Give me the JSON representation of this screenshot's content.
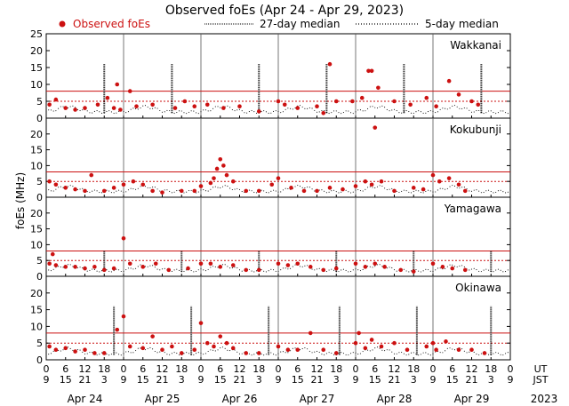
{
  "chart_data": {
    "type": "scatter",
    "title": "Observed foEs (Apr 24 - Apr 29, 2023)",
    "ylabel": "foEs (MHz)",
    "legend": {
      "placement": "top",
      "entries": [
        "Observed foEs",
        "27-day median",
        "5-day median"
      ]
    },
    "colors": {
      "observed": "#cc1111",
      "median27": "#000000",
      "median5": "#000000",
      "ref_line": "#cc1111"
    },
    "x_units": "hours since Apr 24 09 JST",
    "xlim": [
      0,
      144
    ],
    "ut_ticks": [
      "0",
      "6",
      "12",
      "18",
      "0",
      "6",
      "12",
      "18",
      "0",
      "6",
      "12",
      "18",
      "0",
      "6",
      "12",
      "18",
      "0",
      "6",
      "12",
      "18",
      "0",
      "6",
      "12",
      "18",
      "0"
    ],
    "jst_ticks": [
      "9",
      "15",
      "21",
      "3",
      "9",
      "15",
      "21",
      "3",
      "9",
      "15",
      "21",
      "3",
      "9",
      "15",
      "21",
      "3",
      "9",
      "15",
      "21",
      "3",
      "9",
      "15",
      "21",
      "3",
      "9"
    ],
    "ut_label": "UT",
    "jst_label": "JST",
    "dates": [
      "Apr 24",
      "Apr 25",
      "Apr 26",
      "Apr 27",
      "Apr 28",
      "Apr 29"
    ],
    "year": "2023",
    "grid": false,
    "panels": [
      {
        "name": "Wakkanai",
        "ylim": [
          0,
          25
        ],
        "yticks": [
          0,
          5,
          10,
          15,
          20,
          25
        ],
        "ytick_labels": [
          "0",
          "5",
          "10",
          "15",
          "20",
          "25"
        ],
        "ref_lines": [
          5,
          8
        ],
        "spike_hours": [
          18,
          39,
          66,
          87,
          111,
          135
        ],
        "observed": [
          [
            1,
            4
          ],
          [
            3,
            5.5
          ],
          [
            6,
            3
          ],
          [
            9,
            2.5
          ],
          [
            12,
            3
          ],
          [
            16,
            4
          ],
          [
            19,
            6
          ],
          [
            21,
            3
          ],
          [
            22,
            10
          ],
          [
            23,
            2.5
          ],
          [
            26,
            8
          ],
          [
            28,
            3.5
          ],
          [
            33,
            4
          ],
          [
            40,
            3
          ],
          [
            43,
            5
          ],
          [
            46,
            3.5
          ],
          [
            50,
            4
          ],
          [
            55,
            3
          ],
          [
            60,
            3.5
          ],
          [
            66,
            2
          ],
          [
            72,
            5
          ],
          [
            74,
            4
          ],
          [
            78,
            3
          ],
          [
            84,
            3.5
          ],
          [
            86,
            1.5
          ],
          [
            88,
            16
          ],
          [
            90,
            5
          ],
          [
            95,
            5
          ],
          [
            98,
            6
          ],
          [
            100,
            14
          ],
          [
            101,
            14
          ],
          [
            103,
            9
          ],
          [
            108,
            5
          ],
          [
            113,
            4
          ],
          [
            118,
            6
          ],
          [
            121,
            3.5
          ],
          [
            125,
            11
          ],
          [
            128,
            7
          ],
          [
            132,
            5
          ],
          [
            134,
            4
          ]
        ]
      },
      {
        "name": "Kokubunji",
        "ylim": [
          0,
          25
        ],
        "yticks": [
          0,
          5,
          10,
          15,
          20
        ],
        "ytick_labels": [
          "0",
          "5",
          "10",
          "15",
          "20"
        ],
        "ref_lines": [
          5,
          8
        ],
        "spike_hours": [],
        "observed": [
          [
            1,
            5
          ],
          [
            3,
            4
          ],
          [
            6,
            3
          ],
          [
            9,
            2.5
          ],
          [
            12,
            2
          ],
          [
            14,
            7
          ],
          [
            18,
            2
          ],
          [
            21,
            3
          ],
          [
            24,
            4
          ],
          [
            27,
            5
          ],
          [
            30,
            4
          ],
          [
            33,
            2
          ],
          [
            36,
            1.5
          ],
          [
            42,
            2
          ],
          [
            46,
            2
          ],
          [
            48,
            3.5
          ],
          [
            51,
            4.5
          ],
          [
            52,
            6
          ],
          [
            53,
            9
          ],
          [
            54,
            12
          ],
          [
            55,
            10
          ],
          [
            56,
            7
          ],
          [
            58,
            5
          ],
          [
            62,
            2
          ],
          [
            66,
            2
          ],
          [
            70,
            4
          ],
          [
            72,
            6
          ],
          [
            76,
            3
          ],
          [
            80,
            2
          ],
          [
            84,
            2
          ],
          [
            88,
            3
          ],
          [
            92,
            2.5
          ],
          [
            96,
            3.5
          ],
          [
            99,
            5
          ],
          [
            101,
            4
          ],
          [
            102,
            22
          ],
          [
            104,
            5
          ],
          [
            108,
            2
          ],
          [
            114,
            3
          ],
          [
            117,
            2.5
          ],
          [
            120,
            7
          ],
          [
            122,
            5
          ],
          [
            125,
            6
          ],
          [
            128,
            4
          ],
          [
            130,
            2
          ]
        ]
      },
      {
        "name": "Yamagawa",
        "ylim": [
          0,
          25
        ],
        "yticks": [
          0,
          5,
          10,
          15,
          20
        ],
        "ytick_labels": [
          "0",
          "5",
          "10",
          "15",
          "20"
        ],
        "ref_lines": [
          5,
          8
        ],
        "spike_hours": [
          18,
          42,
          66,
          90,
          114,
          138
        ],
        "observed": [
          [
            1,
            4
          ],
          [
            2,
            7
          ],
          [
            3,
            3.5
          ],
          [
            6,
            3
          ],
          [
            9,
            3
          ],
          [
            12,
            2.5
          ],
          [
            15,
            3
          ],
          [
            18,
            2
          ],
          [
            21,
            2.5
          ],
          [
            24,
            12
          ],
          [
            26,
            4
          ],
          [
            30,
            3
          ],
          [
            34,
            4
          ],
          [
            38,
            2
          ],
          [
            44,
            2.5
          ],
          [
            48,
            4
          ],
          [
            51,
            4
          ],
          [
            54,
            3
          ],
          [
            58,
            3.5
          ],
          [
            62,
            2
          ],
          [
            66,
            2
          ],
          [
            72,
            4
          ],
          [
            75,
            3.5
          ],
          [
            78,
            4
          ],
          [
            82,
            3
          ],
          [
            86,
            2
          ],
          [
            90,
            2.5
          ],
          [
            96,
            4
          ],
          [
            99,
            3
          ],
          [
            102,
            4
          ],
          [
            105,
            3
          ],
          [
            110,
            2
          ],
          [
            114,
            1.5
          ],
          [
            120,
            4
          ],
          [
            123,
            3
          ],
          [
            126,
            2.5
          ],
          [
            130,
            2
          ]
        ]
      },
      {
        "name": "Okinawa",
        "ylim": [
          0,
          25
        ],
        "yticks": [
          0,
          5,
          10,
          15,
          20
        ],
        "ytick_labels": [
          "0",
          "5",
          "10",
          "15",
          "20"
        ],
        "ref_lines": [
          5,
          8
        ],
        "spike_hours": [
          21,
          45,
          69,
          91,
          115,
          138
        ],
        "observed": [
          [
            1,
            4
          ],
          [
            3,
            3
          ],
          [
            6,
            3.5
          ],
          [
            9,
            2.5
          ],
          [
            12,
            3
          ],
          [
            15,
            2
          ],
          [
            18,
            2
          ],
          [
            22,
            9
          ],
          [
            24,
            13
          ],
          [
            26,
            4
          ],
          [
            30,
            3.5
          ],
          [
            33,
            7
          ],
          [
            36,
            3
          ],
          [
            39,
            4
          ],
          [
            42,
            2
          ],
          [
            46,
            3
          ],
          [
            48,
            11
          ],
          [
            50,
            5
          ],
          [
            52,
            4
          ],
          [
            54,
            7
          ],
          [
            56,
            5
          ],
          [
            58,
            3.5
          ],
          [
            62,
            2
          ],
          [
            66,
            2
          ],
          [
            72,
            4
          ],
          [
            75,
            3
          ],
          [
            78,
            3
          ],
          [
            82,
            8
          ],
          [
            86,
            3
          ],
          [
            90,
            2
          ],
          [
            96,
            5
          ],
          [
            97,
            8
          ],
          [
            99,
            3.5
          ],
          [
            101,
            6
          ],
          [
            104,
            4
          ],
          [
            108,
            5
          ],
          [
            112,
            3
          ],
          [
            118,
            4
          ],
          [
            120,
            5
          ],
          [
            121,
            3
          ],
          [
            124,
            5.5
          ],
          [
            128,
            3
          ],
          [
            132,
            3
          ],
          [
            136,
            2
          ]
        ]
      }
    ]
  }
}
